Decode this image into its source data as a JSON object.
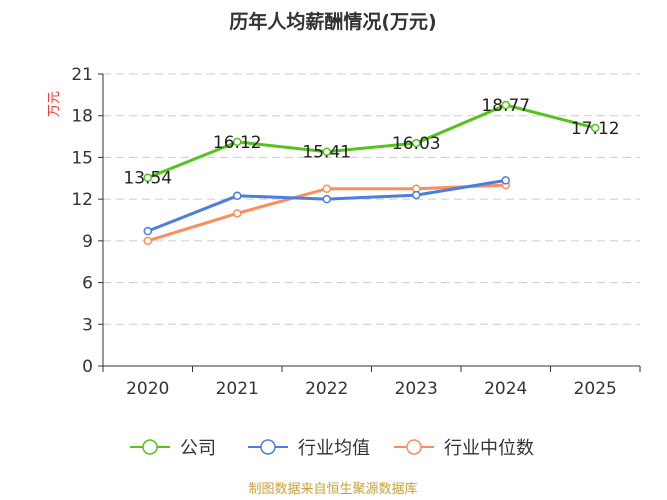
{
  "chart_data": {
    "type": "line",
    "title": "历年人均薪酬情况(万元)",
    "ylabel": "万元",
    "categories": [
      "2020",
      "2021",
      "2022",
      "2023",
      "2024",
      "2025"
    ],
    "ylim": [
      0,
      21
    ],
    "yticks": [
      0,
      3,
      6,
      9,
      12,
      15,
      18,
      21
    ],
    "grid": true,
    "legend_position": "bottom",
    "series": [
      {
        "name": "公司",
        "color": "#52c41a",
        "values": [
          13.54,
          16.12,
          15.41,
          16.03,
          18.77,
          17.12
        ],
        "labels": [
          "13.54",
          "16.12",
          "15.41",
          "16.03",
          "18.77",
          "17.12"
        ]
      },
      {
        "name": "行业均值",
        "color": "#4a7fe0",
        "values": [
          9.7,
          12.24,
          12.0,
          12.29,
          13.35,
          null
        ]
      },
      {
        "name": "行业中位数",
        "color": "#ff8c5a",
        "values": [
          9.0,
          10.98,
          12.75,
          12.75,
          13.01,
          null
        ]
      }
    ],
    "source": "制图数据来自恒生聚源数据库"
  }
}
